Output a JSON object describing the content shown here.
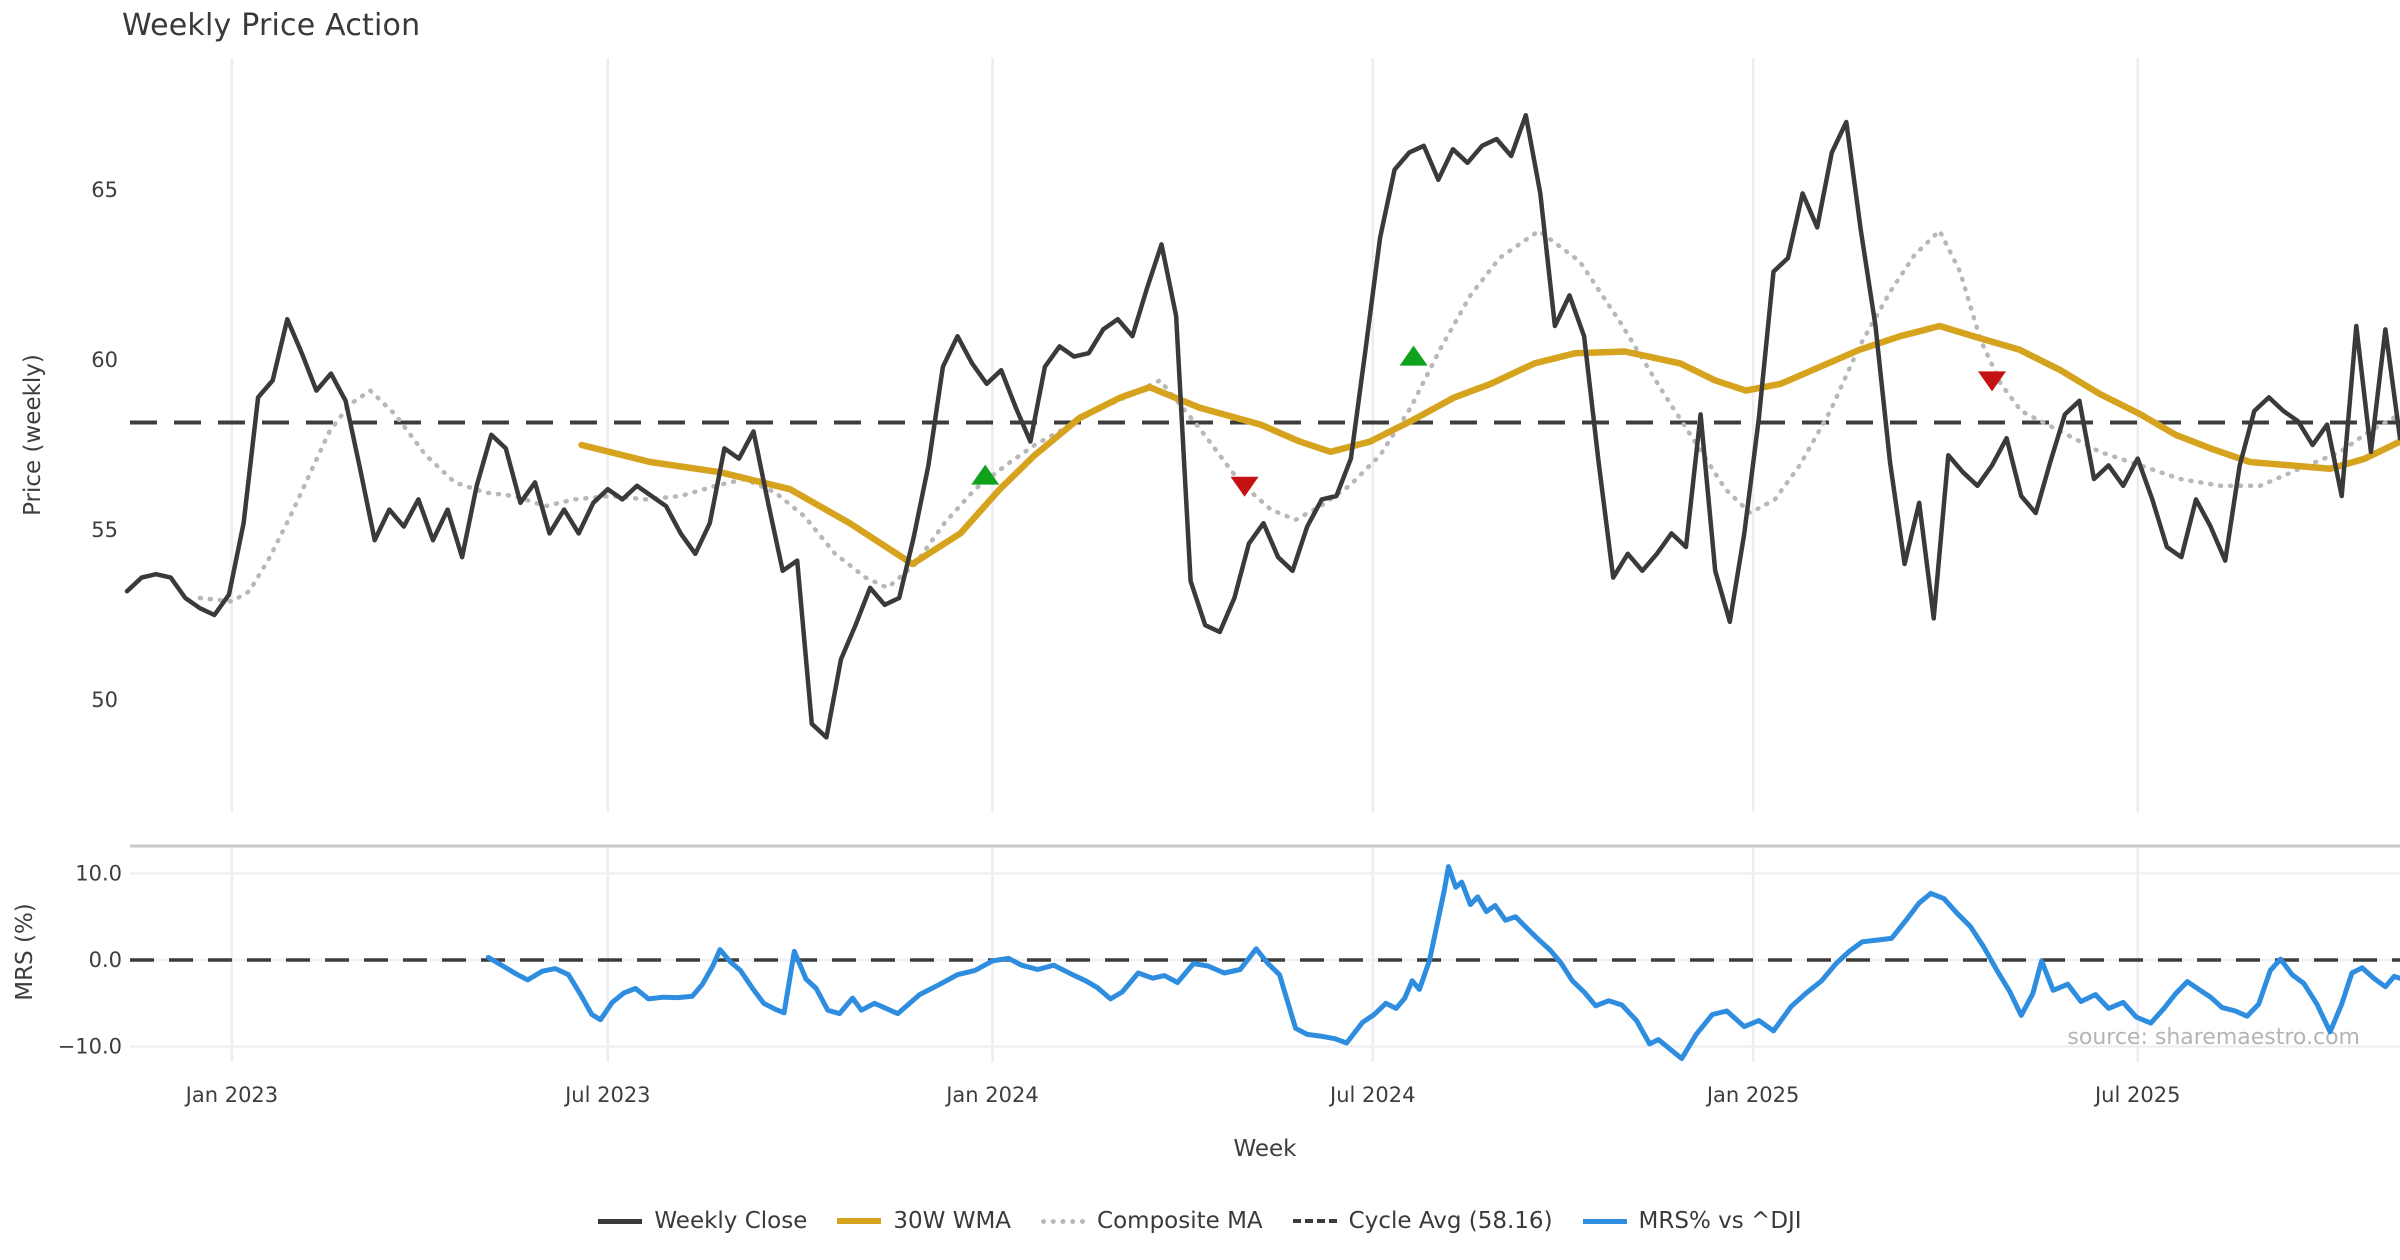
{
  "title": "Weekly Price Action",
  "watermark": "source: sharemaestro.com",
  "colors": {
    "close": "#3a3a3a",
    "wma": "#d6a31f",
    "composite": "#b8b8b8",
    "cycle": "#3c3c3c",
    "mrs": "#2f8de0",
    "buy_marker": "#0fa31d",
    "sell_marker": "#c41111",
    "grid": "#ececf2",
    "spine": "#c8c8c8",
    "tick_text": "#3d3d3d",
    "watermark_text": "#b4b4b4"
  },
  "legend": {
    "items": [
      {
        "label": "Weekly Close",
        "swatch": "solid-dark"
      },
      {
        "label": "30W WMA",
        "swatch": "solid-gold"
      },
      {
        "label": "Composite MA",
        "swatch": "dotted"
      },
      {
        "label": "Cycle Avg (58.16)",
        "swatch": "dashed"
      },
      {
        "label": "MRS% vs ^DJI",
        "swatch": "solid-blue"
      }
    ]
  },
  "chart_data": [
    {
      "type": "line",
      "panel": "price",
      "title": "Weekly Price Action",
      "ylabel": "Price (weekly)",
      "xlabel": "Week",
      "ylim": [
        46.7,
        68.9
      ],
      "yticks": [
        65,
        60,
        55,
        50
      ],
      "ytick_labels": [
        "65",
        "60",
        "55",
        "50"
      ],
      "x_tick_indices": [
        7.2,
        33.0,
        59.4,
        85.5,
        111.6,
        138.0
      ],
      "x_tick_labels": [
        "Jan 2023",
        "Jul 2023",
        "Jan 2024",
        "Jul 2024",
        "Jan 2025",
        "Jul 2025"
      ],
      "x_range": [
        0,
        156
      ],
      "grid": "vertical",
      "cycle_avg": 58.16,
      "weekly_close": [
        53.2,
        53.6,
        53.7,
        53.6,
        53.0,
        52.7,
        52.5,
        53.1,
        55.2,
        58.9,
        59.4,
        61.2,
        60.2,
        59.1,
        59.6,
        58.8,
        56.8,
        54.7,
        55.6,
        55.1,
        55.9,
        54.7,
        55.6,
        54.2,
        56.3,
        57.8,
        57.4,
        55.8,
        56.4,
        54.9,
        55.6,
        54.9,
        55.8,
        56.2,
        55.9,
        56.3,
        56.0,
        55.7,
        54.9,
        54.3,
        55.2,
        57.4,
        57.1,
        57.9,
        55.8,
        53.8,
        54.1,
        49.3,
        48.9,
        51.2,
        52.2,
        53.3,
        52.8,
        53.0,
        54.8,
        56.9,
        59.8,
        60.7,
        59.9,
        59.3,
        59.7,
        58.6,
        57.6,
        59.8,
        60.4,
        60.1,
        60.2,
        60.9,
        61.2,
        60.7,
        62.1,
        63.4,
        61.3,
        53.5,
        52.2,
        52.0,
        53.0,
        54.6,
        55.2,
        54.2,
        53.8,
        55.1,
        55.9,
        56.0,
        57.1,
        60.3,
        63.6,
        65.6,
        66.1,
        66.3,
        65.3,
        66.2,
        65.8,
        66.3,
        66.5,
        66.0,
        67.2,
        64.9,
        61.0,
        61.9,
        60.7,
        57.0,
        53.6,
        54.3,
        53.8,
        54.3,
        54.9,
        54.5,
        58.4,
        53.8,
        52.3,
        54.9,
        58.3,
        62.6,
        63.0,
        64.9,
        63.9,
        66.1,
        67.0,
        63.8,
        61.0,
        57.0,
        54.0,
        55.8,
        52.4,
        57.2,
        56.7,
        56.3,
        56.9,
        57.7,
        56.0,
        55.5,
        57.0,
        58.4,
        58.8,
        56.5,
        56.9,
        56.3,
        57.1,
        55.9,
        54.5,
        54.2,
        55.9,
        55.1,
        54.1,
        56.9,
        58.5,
        58.9,
        58.5,
        58.2,
        57.5,
        58.1,
        56.0,
        61.0,
        57.3,
        60.9,
        57.7
      ],
      "wma_30w": [
        [
          31.2,
          57.5
        ],
        [
          35.9,
          57.0
        ],
        [
          40.7,
          56.7
        ],
        [
          45.5,
          56.2
        ],
        [
          49.6,
          55.2
        ],
        [
          53.9,
          54.0
        ],
        [
          57.2,
          54.9
        ],
        [
          59.9,
          56.2
        ],
        [
          62.3,
          57.2
        ],
        [
          65.4,
          58.3
        ],
        [
          68.2,
          58.9
        ],
        [
          70.2,
          59.2
        ],
        [
          73.6,
          58.6
        ],
        [
          77.8,
          58.1
        ],
        [
          80.5,
          57.6
        ],
        [
          82.6,
          57.3
        ],
        [
          85.3,
          57.6
        ],
        [
          88.1,
          58.2
        ],
        [
          91.1,
          58.9
        ],
        [
          93.6,
          59.3
        ],
        [
          96.6,
          59.9
        ],
        [
          99.4,
          60.2
        ],
        [
          102.8,
          60.25
        ],
        [
          106.6,
          59.9
        ],
        [
          109.0,
          59.4
        ],
        [
          111.1,
          59.1
        ],
        [
          113.5,
          59.3
        ],
        [
          116.2,
          59.8
        ],
        [
          118.9,
          60.3
        ],
        [
          121.7,
          60.7
        ],
        [
          124.4,
          61.0
        ],
        [
          127.5,
          60.6
        ],
        [
          129.9,
          60.3
        ],
        [
          132.7,
          59.7
        ],
        [
          135.4,
          59.0
        ],
        [
          138.2,
          58.4
        ],
        [
          140.6,
          57.8
        ],
        [
          143.0,
          57.4
        ],
        [
          145.7,
          57.0
        ],
        [
          148.5,
          56.9
        ],
        [
          151.2,
          56.8
        ],
        [
          153.6,
          57.1
        ],
        [
          156,
          57.6
        ]
      ],
      "composite_ma": [
        [
          5.0,
          53.0
        ],
        [
          7.2,
          52.9
        ],
        [
          8.4,
          53.2
        ],
        [
          9.8,
          54.2
        ],
        [
          11.2,
          55.4
        ],
        [
          12.6,
          56.7
        ],
        [
          13.9,
          57.9
        ],
        [
          15.3,
          58.7
        ],
        [
          16.7,
          59.1
        ],
        [
          18.4,
          58.4
        ],
        [
          20.5,
          57.2
        ],
        [
          22.5,
          56.4
        ],
        [
          24.6,
          56.1
        ],
        [
          26.6,
          56.0
        ],
        [
          28.7,
          55.7
        ],
        [
          30.7,
          55.9
        ],
        [
          33.2,
          56.0
        ],
        [
          35.6,
          55.9
        ],
        [
          38.0,
          56.0
        ],
        [
          40.4,
          56.3
        ],
        [
          42.4,
          56.5
        ],
        [
          44.5,
          56.1
        ],
        [
          46.5,
          55.4
        ],
        [
          48.6,
          54.3
        ],
        [
          50.7,
          53.6
        ],
        [
          52.2,
          53.3
        ],
        [
          54.1,
          54.0
        ],
        [
          56.1,
          55.2
        ],
        [
          58.2,
          56.2
        ],
        [
          60.3,
          56.9
        ],
        [
          62.3,
          57.5
        ],
        [
          64.4,
          58.0
        ],
        [
          66.4,
          58.5
        ],
        [
          68.5,
          58.9
        ],
        [
          70.9,
          59.4
        ],
        [
          73.6,
          58.0
        ],
        [
          76.4,
          56.4
        ],
        [
          78.5,
          55.6
        ],
        [
          80.2,
          55.3
        ],
        [
          81.9,
          55.7
        ],
        [
          83.9,
          56.3
        ],
        [
          86.0,
          57.2
        ],
        [
          88.1,
          58.6
        ],
        [
          90.1,
          60.3
        ],
        [
          92.2,
          61.9
        ],
        [
          94.2,
          63.0
        ],
        [
          96.9,
          63.8
        ],
        [
          99.7,
          62.9
        ],
        [
          102.5,
          61.1
        ],
        [
          105.2,
          59.2
        ],
        [
          107.9,
          57.4
        ],
        [
          109.7,
          56.2
        ],
        [
          111.4,
          55.5
        ],
        [
          113.1,
          55.9
        ],
        [
          114.8,
          56.9
        ],
        [
          116.9,
          58.5
        ],
        [
          118.9,
          60.4
        ],
        [
          121.0,
          62.0
        ],
        [
          122.7,
          63.1
        ],
        [
          124.4,
          63.8
        ],
        [
          125.8,
          62.6
        ],
        [
          127.2,
          60.6
        ],
        [
          128.6,
          59.3
        ],
        [
          130.0,
          58.5
        ],
        [
          132.7,
          57.9
        ],
        [
          135.4,
          57.3
        ],
        [
          138.2,
          56.9
        ],
        [
          140.9,
          56.5
        ],
        [
          143.7,
          56.3
        ],
        [
          146.4,
          56.3
        ],
        [
          149.1,
          56.8
        ],
        [
          151.9,
          57.3
        ],
        [
          153.9,
          57.9
        ],
        [
          156,
          58.4
        ]
      ],
      "buy_markers": [
        [
          58.9,
          56.6
        ],
        [
          88.3,
          60.1
        ]
      ],
      "sell_markers": [
        [
          76.7,
          56.3
        ],
        [
          128.0,
          59.4
        ]
      ]
    },
    {
      "type": "line",
      "panel": "mrs",
      "ylabel": "MRS (%)",
      "yticks": [
        10,
        0,
        -10
      ],
      "ytick_labels": [
        "10.0",
        "0.0",
        "−10.0"
      ],
      "zero_line": 0,
      "x_range": [
        0,
        156
      ],
      "mrs_pct": [
        [
          24.8,
          0.3
        ],
        [
          25.9,
          -0.8
        ],
        [
          26.8,
          -1.7
        ],
        [
          27.5,
          -2.3
        ],
        [
          28.5,
          -1.3
        ],
        [
          29.4,
          -1.0
        ],
        [
          30.3,
          -1.7
        ],
        [
          31.1,
          -3.9
        ],
        [
          31.9,
          -6.3
        ],
        [
          32.5,
          -6.9
        ],
        [
          33.3,
          -4.9
        ],
        [
          34.1,
          -3.8
        ],
        [
          34.9,
          -3.3
        ],
        [
          35.8,
          -4.5
        ],
        [
          36.8,
          -4.3
        ],
        [
          37.8,
          -4.35
        ],
        [
          38.8,
          -4.2
        ],
        [
          39.5,
          -2.8
        ],
        [
          40.2,
          -0.7
        ],
        [
          40.7,
          1.2
        ],
        [
          41.4,
          -0.2
        ],
        [
          42.1,
          -1.2
        ],
        [
          42.9,
          -3.2
        ],
        [
          43.7,
          -5.0
        ],
        [
          44.5,
          -5.7
        ],
        [
          45.1,
          -6.1
        ],
        [
          45.8,
          1.0
        ],
        [
          46.6,
          -2.2
        ],
        [
          47.3,
          -3.3
        ],
        [
          48.1,
          -5.8
        ],
        [
          48.9,
          -6.2
        ],
        [
          49.8,
          -4.4
        ],
        [
          50.4,
          -5.8
        ],
        [
          51.3,
          -5.0
        ],
        [
          52.9,
          -6.2
        ],
        [
          54.4,
          -4.0
        ],
        [
          55.8,
          -2.8
        ],
        [
          57.0,
          -1.7
        ],
        [
          58.2,
          -1.2
        ],
        [
          59.4,
          -0.1
        ],
        [
          60.5,
          0.2
        ],
        [
          61.4,
          -0.6
        ],
        [
          62.5,
          -1.1
        ],
        [
          63.6,
          -0.6
        ],
        [
          64.9,
          -1.7
        ],
        [
          65.8,
          -2.4
        ],
        [
          66.6,
          -3.2
        ],
        [
          67.5,
          -4.5
        ],
        [
          68.3,
          -3.7
        ],
        [
          69.4,
          -1.5
        ],
        [
          70.4,
          -2.1
        ],
        [
          71.2,
          -1.8
        ],
        [
          72.1,
          -2.6
        ],
        [
          73.2,
          -0.4
        ],
        [
          74.2,
          -0.7
        ],
        [
          75.3,
          -1.5
        ],
        [
          76.4,
          -1.1
        ],
        [
          77.5,
          1.3
        ],
        [
          78.3,
          -0.4
        ],
        [
          79.1,
          -1.7
        ],
        [
          80.2,
          -7.9
        ],
        [
          81.0,
          -8.6
        ],
        [
          81.9,
          -8.8
        ],
        [
          82.9,
          -9.1
        ],
        [
          83.7,
          -9.6
        ],
        [
          84.8,
          -7.2
        ],
        [
          85.6,
          -6.3
        ],
        [
          86.4,
          -5.0
        ],
        [
          87.1,
          -5.6
        ],
        [
          87.7,
          -4.4
        ],
        [
          88.2,
          -2.4
        ],
        [
          88.7,
          -3.4
        ],
        [
          89.4,
          0.0
        ],
        [
          89.9,
          4.0
        ],
        [
          90.4,
          8.0
        ],
        [
          90.7,
          10.8
        ],
        [
          91.2,
          8.4
        ],
        [
          91.6,
          9.0
        ],
        [
          92.2,
          6.4
        ],
        [
          92.7,
          7.3
        ],
        [
          93.3,
          5.6
        ],
        [
          93.9,
          6.3
        ],
        [
          94.6,
          4.6
        ],
        [
          95.3,
          5.0
        ],
        [
          96.0,
          3.8
        ],
        [
          96.8,
          2.5
        ],
        [
          97.7,
          1.1
        ],
        [
          98.4,
          -0.3
        ],
        [
          99.2,
          -2.4
        ],
        [
          100.0,
          -3.7
        ],
        [
          100.8,
          -5.3
        ],
        [
          101.7,
          -4.7
        ],
        [
          102.6,
          -5.2
        ],
        [
          103.6,
          -7.0
        ],
        [
          104.5,
          -9.7
        ],
        [
          105.1,
          -9.2
        ],
        [
          105.9,
          -10.3
        ],
        [
          106.7,
          -11.4
        ],
        [
          107.7,
          -8.6
        ],
        [
          108.8,
          -6.3
        ],
        [
          109.8,
          -5.9
        ],
        [
          111.0,
          -7.7
        ],
        [
          112.0,
          -7.0
        ],
        [
          113.0,
          -8.2
        ],
        [
          114.2,
          -5.4
        ],
        [
          115.2,
          -3.9
        ],
        [
          116.3,
          -2.4
        ],
        [
          117.3,
          -0.4
        ],
        [
          118.2,
          1.0
        ],
        [
          119.1,
          2.1
        ],
        [
          120.1,
          2.3
        ],
        [
          121.1,
          2.5
        ],
        [
          122.1,
          4.6
        ],
        [
          123.0,
          6.6
        ],
        [
          123.8,
          7.7
        ],
        [
          124.7,
          7.1
        ],
        [
          125.6,
          5.4
        ],
        [
          126.5,
          3.9
        ],
        [
          127.4,
          1.6
        ],
        [
          128.4,
          -1.4
        ],
        [
          129.2,
          -3.6
        ],
        [
          130.0,
          -6.4
        ],
        [
          130.8,
          -3.9
        ],
        [
          131.4,
          -0.1
        ],
        [
          132.2,
          -3.5
        ],
        [
          133.2,
          -2.8
        ],
        [
          134.1,
          -4.8
        ],
        [
          135.1,
          -4.0
        ],
        [
          136.0,
          -5.6
        ],
        [
          137.0,
          -4.9
        ],
        [
          137.9,
          -6.6
        ],
        [
          138.9,
          -7.3
        ],
        [
          139.8,
          -5.6
        ],
        [
          140.6,
          -3.9
        ],
        [
          141.4,
          -2.5
        ],
        [
          142.2,
          -3.4
        ],
        [
          143.0,
          -4.3
        ],
        [
          143.8,
          -5.5
        ],
        [
          144.7,
          -5.9
        ],
        [
          145.5,
          -6.5
        ],
        [
          146.3,
          -5.1
        ],
        [
          147.1,
          -1.2
        ],
        [
          147.8,
          0.1
        ],
        [
          148.6,
          -1.7
        ],
        [
          149.4,
          -2.7
        ],
        [
          150.3,
          -5.1
        ],
        [
          151.2,
          -8.3
        ],
        [
          152.0,
          -5.1
        ],
        [
          152.7,
          -1.5
        ],
        [
          153.4,
          -0.9
        ],
        [
          154.2,
          -2.1
        ],
        [
          155.0,
          -3.1
        ],
        [
          155.6,
          -1.9
        ],
        [
          156,
          -2.1
        ]
      ]
    }
  ]
}
